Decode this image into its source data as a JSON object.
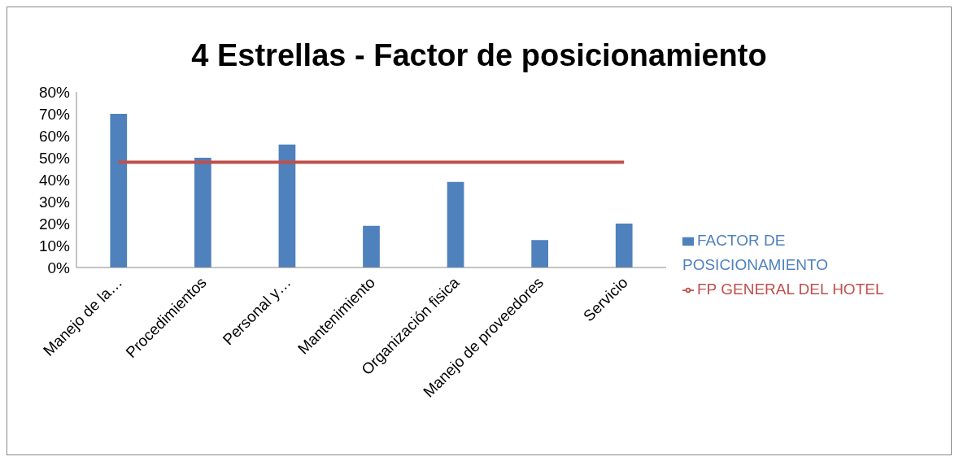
{
  "chart_data": {
    "type": "bar",
    "title": "4 Estrellas - Factor de posicionamiento",
    "categories": [
      "Manejo de la…",
      "Procedimientos",
      "Personal y…",
      "Mantenimiento",
      "Organización fisica",
      "Manejo de proveedores",
      "Servicio"
    ],
    "series": [
      {
        "name": "FACTOR DE POSICIONAMIENTO",
        "color": "#4f81bd",
        "values": [
          70,
          50,
          56,
          19,
          39,
          12.5,
          20
        ]
      },
      {
        "name": "FP GENERAL DEL HOTEL",
        "type": "line",
        "color": "#c0504d",
        "values": [
          48,
          48,
          48,
          48,
          48,
          48,
          48
        ]
      }
    ],
    "ylim": [
      0,
      80
    ],
    "yticks": [
      {
        "value": 0,
        "label": "0%"
      },
      {
        "value": 10,
        "label": "10%"
      },
      {
        "value": 20,
        "label": "20%"
      },
      {
        "value": 30,
        "label": "30%"
      },
      {
        "value": 40,
        "label": "40%"
      },
      {
        "value": 50,
        "label": "50%"
      },
      {
        "value": 60,
        "label": "60%"
      },
      {
        "value": 70,
        "label": "70%"
      },
      {
        "value": 80,
        "label": "80%"
      }
    ],
    "grid": false,
    "legend": "right",
    "marker": "none"
  }
}
